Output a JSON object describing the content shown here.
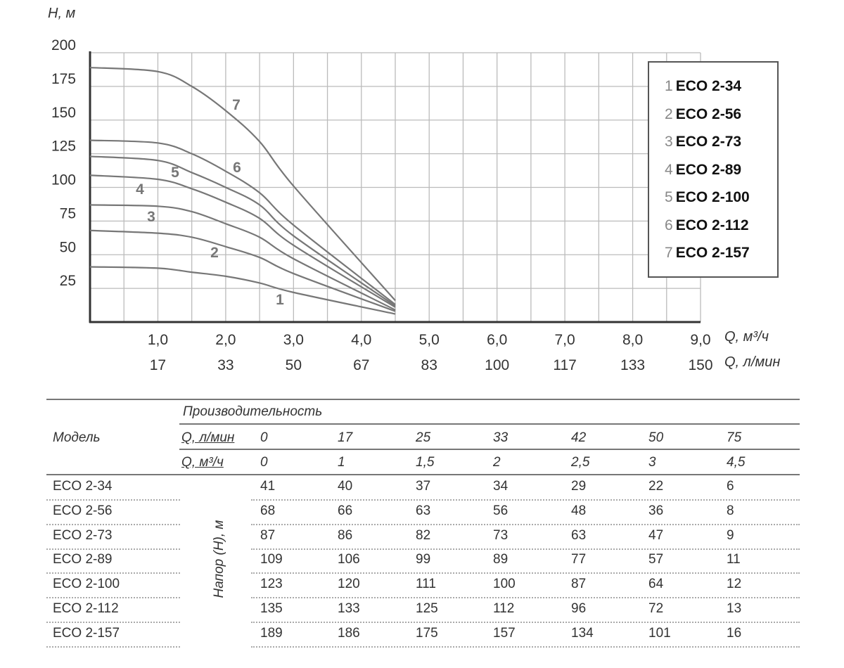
{
  "chart_data": {
    "type": "line",
    "ylabel": "H, м",
    "xlabel_m3h": "Q, м³/ч",
    "xlabel_lmin": "Q, л/мин",
    "ylim": [
      0,
      200
    ],
    "xlim": [
      0,
      9
    ],
    "grid": true,
    "y_ticks": [
      "25",
      "50",
      "75",
      "100",
      "125",
      "150",
      "175",
      "200"
    ],
    "x_ticks_m3h": [
      "1,0",
      "2,0",
      "3,0",
      "4,0",
      "5,0",
      "6,0",
      "7,0",
      "8,0",
      "9,0"
    ],
    "x_ticks_lmin": [
      "17",
      "33",
      "50",
      "67",
      "83",
      "100",
      "117",
      "133",
      "150"
    ],
    "legend_position": "top-right",
    "x": [
      0,
      1,
      1.5,
      2,
      2.5,
      3,
      4.5
    ],
    "series": [
      {
        "num": "1",
        "name": "ECO 2-34",
        "values": [
          41,
          40,
          37,
          34,
          29,
          22,
          6
        ]
      },
      {
        "num": "2",
        "name": "ECO 2-56",
        "values": [
          68,
          66,
          63,
          56,
          48,
          36,
          8
        ]
      },
      {
        "num": "3",
        "name": "ECO 2-73",
        "values": [
          87,
          86,
          82,
          73,
          63,
          47,
          9
        ]
      },
      {
        "num": "4",
        "name": "ECO 2-89",
        "values": [
          109,
          106,
          99,
          89,
          77,
          57,
          11
        ]
      },
      {
        "num": "5",
        "name": "ECO 2-100",
        "values": [
          123,
          120,
          111,
          100,
          87,
          64,
          12
        ]
      },
      {
        "num": "6",
        "name": "ECO 2-112",
        "values": [
          135,
          133,
          125,
          112,
          96,
          72,
          13
        ]
      },
      {
        "num": "7",
        "name": "ECO 2-157",
        "values": [
          189,
          186,
          175,
          157,
          134,
          101,
          16
        ]
      }
    ],
    "colors": {
      "curve": "#777777",
      "grid": "#bbbbbb",
      "axis": "#333333"
    }
  },
  "table": {
    "model_header": "Модель",
    "group_header": "Производительность",
    "q_lmin_label": "Q, л/мин",
    "q_m3h_label": "Q, м³/ч",
    "head_label": "Напор (H), м",
    "q_lmin": [
      "0",
      "17",
      "25",
      "33",
      "42",
      "50",
      "75"
    ],
    "q_m3h": [
      "0",
      "1",
      "1,5",
      "2",
      "2,5",
      "3",
      "4,5"
    ],
    "rows": [
      {
        "model": "ECO 2-34",
        "values": [
          "41",
          "40",
          "37",
          "34",
          "29",
          "22",
          "6"
        ]
      },
      {
        "model": "ECO 2-56",
        "values": [
          "68",
          "66",
          "63",
          "56",
          "48",
          "36",
          "8"
        ]
      },
      {
        "model": "ECO 2-73",
        "values": [
          "87",
          "86",
          "82",
          "73",
          "63",
          "47",
          "9"
        ]
      },
      {
        "model": "ECO 2-89",
        "values": [
          "109",
          "106",
          "99",
          "89",
          "77",
          "57",
          "11"
        ]
      },
      {
        "model": "ECO 2-100",
        "values": [
          "123",
          "120",
          "111",
          "100",
          "87",
          "64",
          "12"
        ]
      },
      {
        "model": "ECO 2-112",
        "values": [
          "135",
          "133",
          "125",
          "112",
          "96",
          "72",
          "13"
        ]
      },
      {
        "model": "ECO 2-157",
        "values": [
          "189",
          "186",
          "175",
          "157",
          "134",
          "101",
          "16"
        ]
      }
    ]
  }
}
